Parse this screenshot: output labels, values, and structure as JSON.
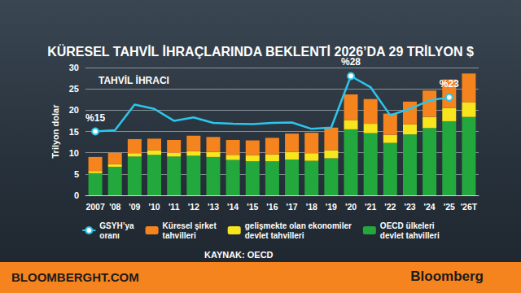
{
  "chart_data": {
    "type": "bar",
    "title": "KÜRESEL TAHVİL İHRAÇLARINDA BEKLENTİ 2026’DA 29 TRİLYON $",
    "subtitle": "TAHVİL İHRACI",
    "source": "KAYNAK: OECD",
    "footer": [
      "BLOOMBERGHT.COM",
      "Bloomberg"
    ],
    "y_label": "Trilyon dolar",
    "categories": [
      "2007",
      "'08",
      "'09",
      "'10",
      "'11",
      "'12",
      "'13",
      "'14",
      "'15",
      "'16",
      "'17",
      "'18",
      "'19",
      "'20",
      "'21",
      "'22",
      "'23",
      "'24",
      "'25",
      "'26T"
    ],
    "stacked": true,
    "data_labels": true,
    "grid": true,
    "legend": "bottom",
    "ylim": [
      0,
      30
    ],
    "yticks": [
      0,
      5,
      10,
      15,
      20,
      25,
      30
    ],
    "series": [
      {
        "name": "GSYH’ya\noranı",
        "type": "line",
        "color": "#2cc6ec",
        "marker": "circle",
        "values": [
          15,
          15.3,
          21.3,
          20.3,
          17.5,
          18.3,
          17.0,
          16.8,
          16.7,
          17.0,
          17.1,
          15.6,
          15.9,
          28,
          25.4,
          18.8,
          20.3,
          22.3,
          23,
          null
        ],
        "value_labels": [
          "%15",
          null,
          null,
          null,
          null,
          null,
          null,
          null,
          null,
          null,
          null,
          null,
          null,
          "%28",
          null,
          null,
          null,
          null,
          "%23",
          null
        ]
      },
      {
        "name": "Küresel şirket\ntahvilleri",
        "type": "bar",
        "color": "#f5841f",
        "values": [
          3.3,
          2.7,
          3.3,
          2.7,
          3.0,
          3.6,
          3.5,
          3.5,
          3.5,
          3.9,
          4.3,
          4.8,
          5.3,
          6.1,
          5.8,
          5.0,
          5.3,
          6.2,
          6.7,
          6.8
        ]
      },
      {
        "name": "gelişmekte olan ekonomiler\ndevlet tahvilleri",
        "type": "bar",
        "color": "#f7e51e",
        "values": [
          0.5,
          0.6,
          0.8,
          1.1,
          0.9,
          1.1,
          1.2,
          1.2,
          1.4,
          1.6,
          1.8,
          1.8,
          1.9,
          2.1,
          2.2,
          1.9,
          2.4,
          2.6,
          3.1,
          3.4
        ]
      },
      {
        "name": "OECD ülkeleri\ndevlet tahvilleri",
        "type": "bar",
        "color": "#22a83c",
        "values": [
          5.2,
          6.7,
          9.1,
          9.5,
          9.1,
          9.3,
          9.0,
          8.3,
          8.0,
          8.0,
          8.4,
          8.1,
          8.7,
          15.5,
          14.6,
          12.3,
          14.3,
          15.8,
          17.4,
          18.4
        ]
      }
    ]
  }
}
